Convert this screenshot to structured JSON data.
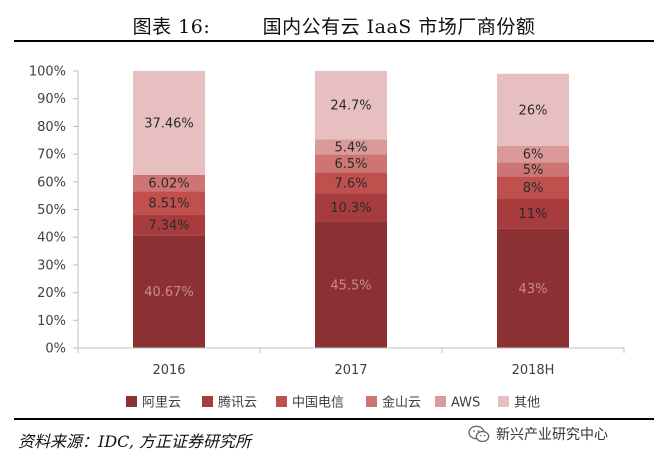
{
  "header": {
    "title": "图表 16:        国内公有云 IaaS 市场厂商份额"
  },
  "footer": {
    "source": "资料来源：IDC, 方正证券研究所",
    "watermark": "新兴产业研究中心"
  },
  "icons": {
    "watermark_icon": "wechat-icon"
  },
  "chart_data": {
    "type": "bar",
    "stacked": true,
    "title": "国内公有云 IaaS 市场厂商份额",
    "categories": [
      "2016",
      "2017",
      "2018H"
    ],
    "series": [
      {
        "name": "阿里云",
        "color": "#8b3133",
        "values": [
          40.67,
          45.5,
          43
        ],
        "labels": [
          "40.67%",
          "45.5%",
          "43%"
        ]
      },
      {
        "name": "腾讯云",
        "color": "#a63c3e",
        "values": [
          7.34,
          10.3,
          11
        ],
        "labels": [
          "7.34%",
          "10.3%",
          "11%"
        ]
      },
      {
        "name": "中国电信",
        "color": "#c0504d",
        "values": [
          8.51,
          7.6,
          8
        ],
        "labels": [
          "8.51%",
          "7.6%",
          "8%"
        ]
      },
      {
        "name": "金山云",
        "color": "#cd7573",
        "values": [
          6.02,
          6.5,
          5
        ],
        "labels": [
          "6.02%",
          "6.5%",
          "5%"
        ]
      },
      {
        "name": "AWS",
        "color": "#d99a99",
        "values": [
          0,
          5.4,
          6
        ],
        "labels": [
          "",
          "5.4%",
          "6%"
        ]
      },
      {
        "name": "其他",
        "color": "#e8bfc0",
        "values": [
          37.46,
          24.7,
          26
        ],
        "labels": [
          "37.46%",
          "24.7%",
          "26%"
        ]
      }
    ],
    "ylim": [
      0,
      100
    ],
    "yticks": [
      "0%",
      "10%",
      "20%",
      "30%",
      "40%",
      "50%",
      "60%",
      "70%",
      "80%",
      "90%",
      "100%"
    ],
    "xlabel": "",
    "ylabel": "",
    "grid": false,
    "legend": "bottom"
  }
}
